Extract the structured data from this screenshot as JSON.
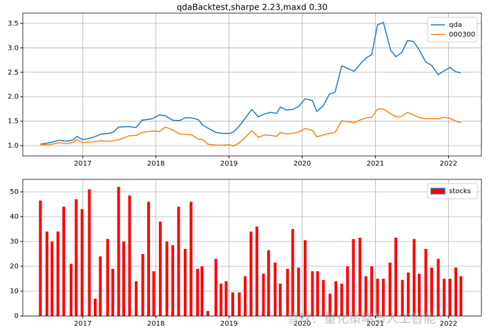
{
  "chart_data": [
    {
      "type": "line",
      "title": "qdaBacktest,sharpe 2.23,maxd 0.30",
      "x": [
        2016.42,
        2016.55,
        2016.67,
        2016.79,
        2016.87,
        2016.92,
        2017.0,
        2017.14,
        2017.26,
        2017.36,
        2017.42,
        2017.49,
        2017.63,
        2017.73,
        2017.81,
        2017.95,
        2018.05,
        2018.13,
        2018.23,
        2018.32,
        2018.4,
        2018.49,
        2018.58,
        2018.64,
        2018.71,
        2018.82,
        2018.91,
        2019.01,
        2019.06,
        2019.14,
        2019.23,
        2019.31,
        2019.4,
        2019.49,
        2019.57,
        2019.65,
        2019.7,
        2019.78,
        2019.87,
        2019.95,
        2020.04,
        2020.14,
        2020.2,
        2020.29,
        2020.37,
        2020.45,
        2020.54,
        2020.71,
        2020.8,
        2020.88,
        2020.95,
        2021.03,
        2021.11,
        2021.21,
        2021.28,
        2021.36,
        2021.44,
        2021.52,
        2021.59,
        2021.69,
        2021.77,
        2021.86,
        2021.94,
        2022.02,
        2022.1,
        2022.17
      ],
      "series": [
        {
          "name": "qda",
          "color": "#1f77b4",
          "values": [
            1.03,
            1.06,
            1.11,
            1.09,
            1.12,
            1.19,
            1.12,
            1.17,
            1.24,
            1.25,
            1.28,
            1.38,
            1.39,
            1.37,
            1.52,
            1.55,
            1.63,
            1.61,
            1.52,
            1.51,
            1.57,
            1.57,
            1.53,
            1.42,
            1.36,
            1.27,
            1.25,
            1.25,
            1.28,
            1.4,
            1.58,
            1.74,
            1.59,
            1.65,
            1.68,
            1.66,
            1.79,
            1.73,
            1.74,
            1.8,
            1.96,
            1.92,
            1.7,
            1.82,
            2.05,
            2.1,
            2.63,
            2.52,
            2.68,
            2.8,
            2.86,
            3.47,
            3.52,
            2.95,
            2.82,
            2.9,
            3.15,
            3.13,
            2.98,
            2.71,
            2.64,
            2.45,
            2.53,
            2.6,
            2.51,
            2.49
          ]
        },
        {
          "name": "000300",
          "color": "#ff7f0e",
          "values": [
            1.02,
            1.02,
            1.06,
            1.04,
            1.07,
            1.12,
            1.06,
            1.08,
            1.1,
            1.09,
            1.1,
            1.12,
            1.2,
            1.21,
            1.27,
            1.3,
            1.29,
            1.38,
            1.32,
            1.24,
            1.23,
            1.22,
            1.13,
            1.12,
            1.03,
            1.01,
            1.01,
            1.02,
            0.99,
            1.06,
            1.18,
            1.31,
            1.17,
            1.22,
            1.21,
            1.19,
            1.27,
            1.24,
            1.25,
            1.28,
            1.35,
            1.31,
            1.18,
            1.22,
            1.25,
            1.27,
            1.51,
            1.47,
            1.53,
            1.57,
            1.58,
            1.75,
            1.75,
            1.65,
            1.59,
            1.6,
            1.68,
            1.63,
            1.58,
            1.55,
            1.55,
            1.55,
            1.58,
            1.56,
            1.5,
            1.47
          ]
        }
      ],
      "xlim": [
        2016.18,
        2022.45
      ],
      "xticks": [
        2017,
        2018,
        2019,
        2020,
        2021,
        2022
      ],
      "ylim": [
        0.79,
        3.71
      ],
      "yticks": [
        {
          "value": 1,
          "label": "1.0"
        },
        1.5,
        {
          "value": 2,
          "label": "2.0"
        },
        2.5,
        {
          "value": 3,
          "label": "3.0"
        },
        3.5
      ],
      "grid": true,
      "legend": "upper right"
    },
    {
      "type": "bar",
      "x": [
        2016.42,
        2016.51,
        2016.58,
        2016.66,
        2016.74,
        2016.84,
        2016.91,
        2016.99,
        2017.09,
        2017.17,
        2017.24,
        2017.34,
        2017.41,
        2017.49,
        2017.56,
        2017.64,
        2017.73,
        2017.82,
        2017.9,
        2017.97,
        2018.06,
        2018.15,
        2018.23,
        2018.31,
        2018.4,
        2018.48,
        2018.57,
        2018.63,
        2018.71,
        2018.82,
        2018.89,
        2018.96,
        2019.05,
        2019.14,
        2019.22,
        2019.3,
        2019.38,
        2019.47,
        2019.54,
        2019.63,
        2019.7,
        2019.8,
        2019.87,
        2019.95,
        2020.04,
        2020.14,
        2020.21,
        2020.29,
        2020.38,
        2020.46,
        2020.54,
        2020.62,
        2020.7,
        2020.79,
        2020.87,
        2020.95,
        2021.03,
        2021.11,
        2021.2,
        2021.28,
        2021.37,
        2021.45,
        2021.53,
        2021.6,
        2021.69,
        2021.77,
        2021.86,
        2021.94,
        2022.02,
        2022.1,
        2022.17
      ],
      "series": [
        {
          "name": "stocks",
          "color": "#ff0000",
          "edgecolor": "#1f77b4",
          "values": [
            46.5,
            34,
            30,
            34,
            44,
            21,
            47,
            43,
            51,
            7,
            24,
            31,
            19,
            52,
            30,
            48.5,
            14,
            25,
            46,
            18,
            38,
            30,
            28.5,
            44,
            27,
            46,
            19,
            20,
            2,
            23,
            13,
            14,
            9.5,
            9.5,
            16,
            34,
            36,
            17,
            26.5,
            21.5,
            13,
            19,
            35,
            19.5,
            30.5,
            18,
            18,
            14.5,
            9,
            14,
            13,
            20,
            31,
            31.5,
            16,
            20,
            15,
            15,
            21.5,
            31.5,
            14.5,
            17.5,
            31,
            17,
            27,
            19.5,
            23,
            15,
            15,
            19.5,
            16
          ]
        }
      ],
      "xlim": [
        2016.18,
        2022.45
      ],
      "xticks": [
        2017,
        2018,
        2019,
        2020,
        2021,
        2022
      ],
      "ylim": [
        0,
        55
      ],
      "yticks": [
        0,
        10,
        20,
        30,
        40,
        50
      ],
      "grid": true,
      "legend": "upper right"
    }
  ],
  "watermark": "雪球：量化策略与人工智能"
}
